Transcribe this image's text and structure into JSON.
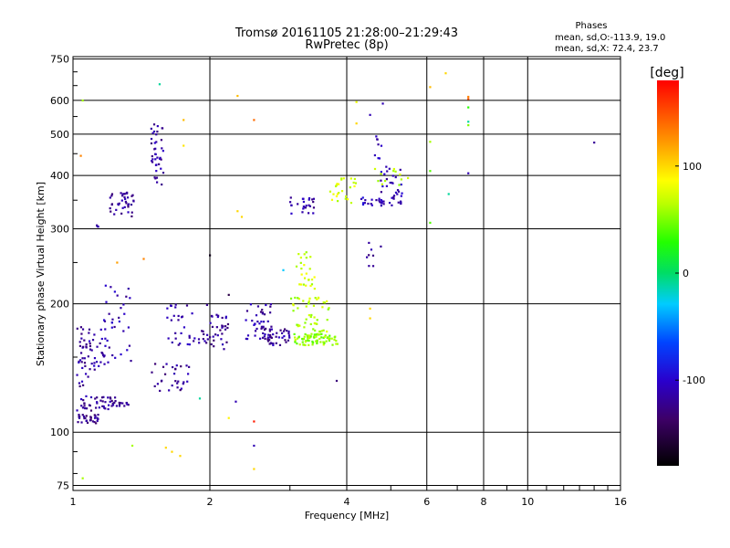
{
  "chart_data": {
    "type": "scatter",
    "title": "Tromsø 20161105 21:28:00–21:29:43",
    "subtitle": "RwPretec (8p)",
    "xlabel": "Frequency [MHz]",
    "ylabel": "Stationary phase Virtual Height [km]",
    "x_scale": "log",
    "y_scale": "log",
    "xlim": [
      1,
      16
    ],
    "ylim": [
      73,
      760
    ],
    "x_ticks": [
      1,
      2,
      4,
      6,
      8,
      10,
      16
    ],
    "y_ticks": [
      75,
      100,
      200,
      300,
      400,
      500,
      600,
      750
    ],
    "grid": true,
    "phase_info": {
      "title": "Phases",
      "line1": "mean, sd,O:-113.9, 19.0",
      "line2": "mean, sd,X: 72.4, 23.7"
    },
    "colorbar": {
      "label": "[deg]",
      "range": [
        -180,
        180
      ],
      "ticks": [
        100,
        0,
        -100
      ]
    },
    "clusters": [
      {
        "x0": 1.02,
        "x1": 1.14,
        "y0": 105,
        "y1": 110,
        "phase": -125,
        "n": 30
      },
      {
        "x0": 1.02,
        "x1": 1.24,
        "y0": 112,
        "y1": 122,
        "phase": -120,
        "n": 40
      },
      {
        "x0": 1.02,
        "x1": 1.08,
        "y0": 128,
        "y1": 182,
        "phase": -118,
        "n": 30
      },
      {
        "x0": 1.08,
        "x1": 1.2,
        "y0": 140,
        "y1": 175,
        "phase": -115,
        "n": 30
      },
      {
        "x0": 1.15,
        "x1": 1.35,
        "y0": 145,
        "y1": 225,
        "phase": -110,
        "n": 35
      },
      {
        "x0": 1.2,
        "x1": 1.33,
        "y0": 115,
        "y1": 118,
        "phase": -120,
        "n": 15
      },
      {
        "x0": 1.2,
        "x1": 1.36,
        "y0": 320,
        "y1": 365,
        "phase": -120,
        "n": 40
      },
      {
        "x0": 1.12,
        "x1": 1.14,
        "y0": 302,
        "y1": 306,
        "phase": -115,
        "n": 3
      },
      {
        "x0": 1.48,
        "x1": 1.58,
        "y0": 380,
        "y1": 530,
        "phase": -115,
        "n": 40
      },
      {
        "x0": 1.48,
        "x1": 1.8,
        "y0": 125,
        "y1": 145,
        "phase": -120,
        "n": 30
      },
      {
        "x0": 1.6,
        "x1": 2.0,
        "y0": 160,
        "y1": 200,
        "phase": -115,
        "n": 40
      },
      {
        "x0": 2.0,
        "x1": 2.2,
        "y0": 155,
        "y1": 190,
        "phase": -120,
        "n": 30
      },
      {
        "x0": 2.4,
        "x1": 2.75,
        "y0": 165,
        "y1": 200,
        "phase": -115,
        "n": 40
      },
      {
        "x0": 2.6,
        "x1": 3.0,
        "y0": 160,
        "y1": 175,
        "phase": -118,
        "n": 40
      },
      {
        "x0": 3.0,
        "x1": 3.4,
        "y0": 325,
        "y1": 355,
        "phase": -115,
        "n": 25
      },
      {
        "x0": 3.05,
        "x1": 3.85,
        "y0": 160,
        "y1": 170,
        "phase": 55,
        "n": 80
      },
      {
        "x0": 3.0,
        "x1": 3.7,
        "y0": 172,
        "y1": 210,
        "phase": 65,
        "n": 50
      },
      {
        "x0": 3.1,
        "x1": 3.4,
        "y0": 215,
        "y1": 265,
        "phase": 70,
        "n": 25
      },
      {
        "x0": 3.65,
        "x1": 4.2,
        "y0": 345,
        "y1": 395,
        "phase": 75,
        "n": 25
      },
      {
        "x0": 4.3,
        "x1": 5.3,
        "y0": 340,
        "y1": 355,
        "phase": -105,
        "n": 30
      },
      {
        "x0": 4.7,
        "x1": 5.3,
        "y0": 355,
        "y1": 420,
        "phase": -110,
        "n": 25
      },
      {
        "x0": 4.6,
        "x1": 5.5,
        "y0": 380,
        "y1": 420,
        "phase": 60,
        "n": 12
      },
      {
        "x0": 4.4,
        "x1": 4.8,
        "y0": 245,
        "y1": 290,
        "phase": -115,
        "n": 8
      },
      {
        "x0": 4.6,
        "x1": 4.8,
        "y0": 430,
        "y1": 500,
        "phase": -110,
        "n": 8
      }
    ],
    "points": [
      {
        "x": 1.05,
        "y": 600,
        "phase": 60
      },
      {
        "x": 1.04,
        "y": 445,
        "phase": 130
      },
      {
        "x": 1.55,
        "y": 655,
        "phase": -10
      },
      {
        "x": 1.75,
        "y": 540,
        "phase": 110
      },
      {
        "x": 1.75,
        "y": 470,
        "phase": 95
      },
      {
        "x": 2.3,
        "y": 615,
        "phase": 110
      },
      {
        "x": 2.5,
        "y": 540,
        "phase": 140
      },
      {
        "x": 2.3,
        "y": 330,
        "phase": 100
      },
      {
        "x": 2.35,
        "y": 320,
        "phase": 100
      },
      {
        "x": 2.0,
        "y": 260,
        "phase": -170
      },
      {
        "x": 2.9,
        "y": 240,
        "phase": -30
      },
      {
        "x": 2.2,
        "y": 210,
        "phase": -150
      },
      {
        "x": 2.28,
        "y": 118,
        "phase": -110
      },
      {
        "x": 2.2,
        "y": 108,
        "phase": 90
      },
      {
        "x": 2.5,
        "y": 106,
        "phase": 170
      },
      {
        "x": 2.5,
        "y": 93,
        "phase": -110
      },
      {
        "x": 2.5,
        "y": 82,
        "phase": 100
      },
      {
        "x": 1.35,
        "y": 93,
        "phase": 60
      },
      {
        "x": 1.6,
        "y": 92,
        "phase": 100
      },
      {
        "x": 1.65,
        "y": 90,
        "phase": 100
      },
      {
        "x": 1.72,
        "y": 88,
        "phase": 100
      },
      {
        "x": 1.05,
        "y": 78,
        "phase": 60
      },
      {
        "x": 1.25,
        "y": 250,
        "phase": 120
      },
      {
        "x": 1.43,
        "y": 255,
        "phase": 130
      },
      {
        "x": 1.9,
        "y": 120,
        "phase": -10
      },
      {
        "x": 3.8,
        "y": 132,
        "phase": -130
      },
      {
        "x": 4.2,
        "y": 595,
        "phase": 80
      },
      {
        "x": 4.5,
        "y": 555,
        "phase": -110
      },
      {
        "x": 4.8,
        "y": 590,
        "phase": -110
      },
      {
        "x": 4.2,
        "y": 530,
        "phase": 100
      },
      {
        "x": 4.5,
        "y": 185,
        "phase": 100
      },
      {
        "x": 4.5,
        "y": 195,
        "phase": 100
      },
      {
        "x": 6.1,
        "y": 645,
        "phase": 110
      },
      {
        "x": 6.6,
        "y": 695,
        "phase": 100
      },
      {
        "x": 6.1,
        "y": 480,
        "phase": 60
      },
      {
        "x": 6.1,
        "y": 410,
        "phase": 40
      },
      {
        "x": 6.1,
        "y": 310,
        "phase": 40
      },
      {
        "x": 6.7,
        "y": 362,
        "phase": -10
      },
      {
        "x": 7.4,
        "y": 612,
        "phase": 130
      },
      {
        "x": 7.4,
        "y": 605,
        "phase": 150
      },
      {
        "x": 7.4,
        "y": 578,
        "phase": 30
      },
      {
        "x": 7.4,
        "y": 535,
        "phase": -10
      },
      {
        "x": 7.4,
        "y": 525,
        "phase": 50
      },
      {
        "x": 7.4,
        "y": 405,
        "phase": -110
      },
      {
        "x": 14.0,
        "y": 478,
        "phase": -120
      }
    ]
  }
}
